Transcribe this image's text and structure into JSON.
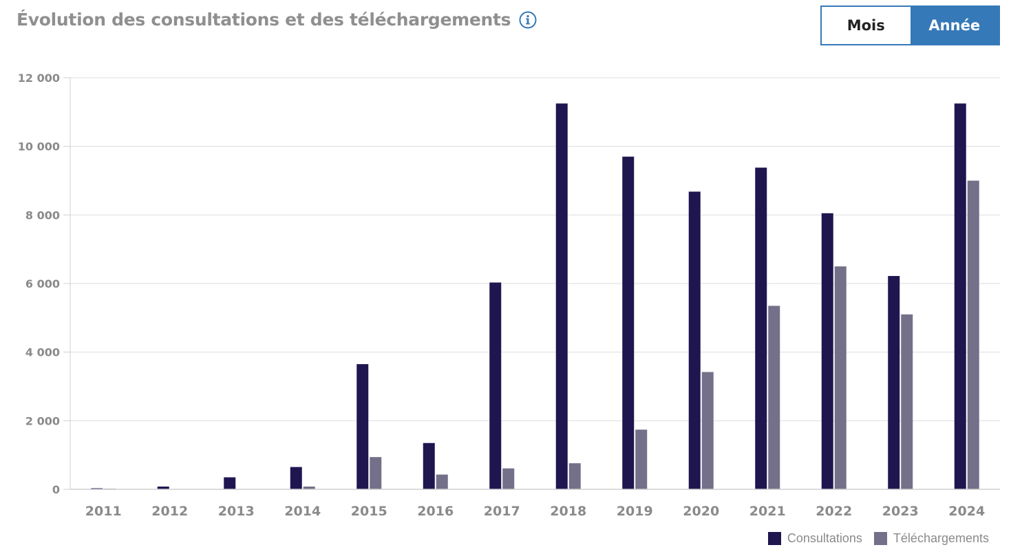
{
  "header": {
    "title": "Évolution des consultations et des téléchargements",
    "info_icon": "info-icon"
  },
  "toggle": {
    "month_label": "Mois",
    "year_label": "Année",
    "active": "year"
  },
  "colors": {
    "consultations": "#1f1650",
    "telechargements": "#747089",
    "accent": "#3579b8",
    "grid": "#dddddd"
  },
  "chart_data": {
    "type": "bar",
    "title": "Évolution des consultations et des téléchargements",
    "xlabel": "",
    "ylabel": "",
    "categories": [
      "2011",
      "2012",
      "2013",
      "2014",
      "2015",
      "2016",
      "2017",
      "2018",
      "2019",
      "2020",
      "2021",
      "2022",
      "2023",
      "2024"
    ],
    "series": [
      {
        "name": "Consultations",
        "values": [
          30,
          80,
          350,
          650,
          3650,
          1350,
          6030,
          11250,
          9700,
          8680,
          9380,
          8050,
          6220,
          11250
        ]
      },
      {
        "name": "Téléchargements",
        "values": [
          20,
          10,
          10,
          80,
          940,
          430,
          610,
          760,
          1740,
          3420,
          5350,
          6500,
          5100,
          9000
        ]
      }
    ],
    "ylim": [
      0,
      12000
    ],
    "y_ticks": [
      0,
      2000,
      4000,
      6000,
      8000,
      10000,
      12000
    ],
    "y_tick_labels": [
      "0",
      "2 000",
      "4 000",
      "6 000",
      "8 000",
      "10 000",
      "12 000"
    ],
    "grid": true,
    "legend_position": "bottom-right"
  }
}
